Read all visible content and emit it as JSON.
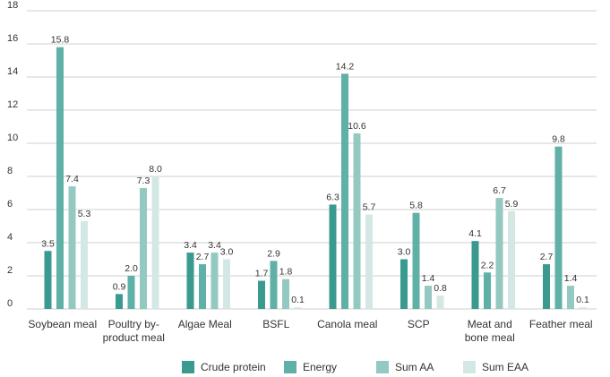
{
  "chart_data": {
    "type": "bar",
    "title": "",
    "xlabel": "",
    "ylabel": "",
    "ylim": [
      0,
      18
    ],
    "yticks": [
      0,
      2,
      4,
      6,
      8,
      10,
      12,
      14,
      16,
      18
    ],
    "grid": true,
    "legend_position": "bottom",
    "categories": [
      [
        "Soybean meal"
      ],
      [
        "Poultry by-",
        "product meal"
      ],
      [
        "Algae Meal"
      ],
      [
        "BSFL"
      ],
      [
        "Canola meal"
      ],
      [
        "SCP"
      ],
      [
        "Meat and",
        "bone meal"
      ],
      [
        "Feather meal"
      ]
    ],
    "series": [
      {
        "name": "Crude protein",
        "color": "#3a9a8f",
        "values": [
          3.5,
          0.9,
          3.4,
          1.7,
          6.3,
          3.0,
          4.1,
          2.7
        ],
        "labels": [
          "3.5",
          "0.9",
          "3.4",
          "1.7",
          "6.3",
          "3.0",
          "4.1",
          "2.7"
        ]
      },
      {
        "name": "Energy",
        "color": "#5fb0a6",
        "values": [
          15.8,
          2.0,
          2.7,
          2.9,
          14.2,
          5.8,
          2.2,
          9.8
        ],
        "labels": [
          "15.8",
          "2.0",
          "2.7",
          "2.9",
          "14.2",
          "5.8",
          "2.2",
          "9.8"
        ]
      },
      {
        "name": "Sum AA",
        "color": "#94c9c2",
        "values": [
          7.4,
          7.3,
          3.4,
          1.8,
          10.6,
          1.4,
          6.7,
          1.4
        ],
        "labels": [
          "7.4",
          "7.3",
          "3.4",
          "1.8",
          "10.6",
          "1.4",
          "6.7",
          "1.4"
        ]
      },
      {
        "name": "Sum EAA",
        "color": "#d3e8e5",
        "values": [
          5.3,
          8.0,
          3.0,
          0.1,
          5.7,
          0.8,
          5.9,
          0.1
        ],
        "labels": [
          "5.3",
          "8.0",
          "3.0",
          "0.1",
          "5.7",
          "0.8",
          "5.9",
          "0.1"
        ]
      }
    ]
  }
}
